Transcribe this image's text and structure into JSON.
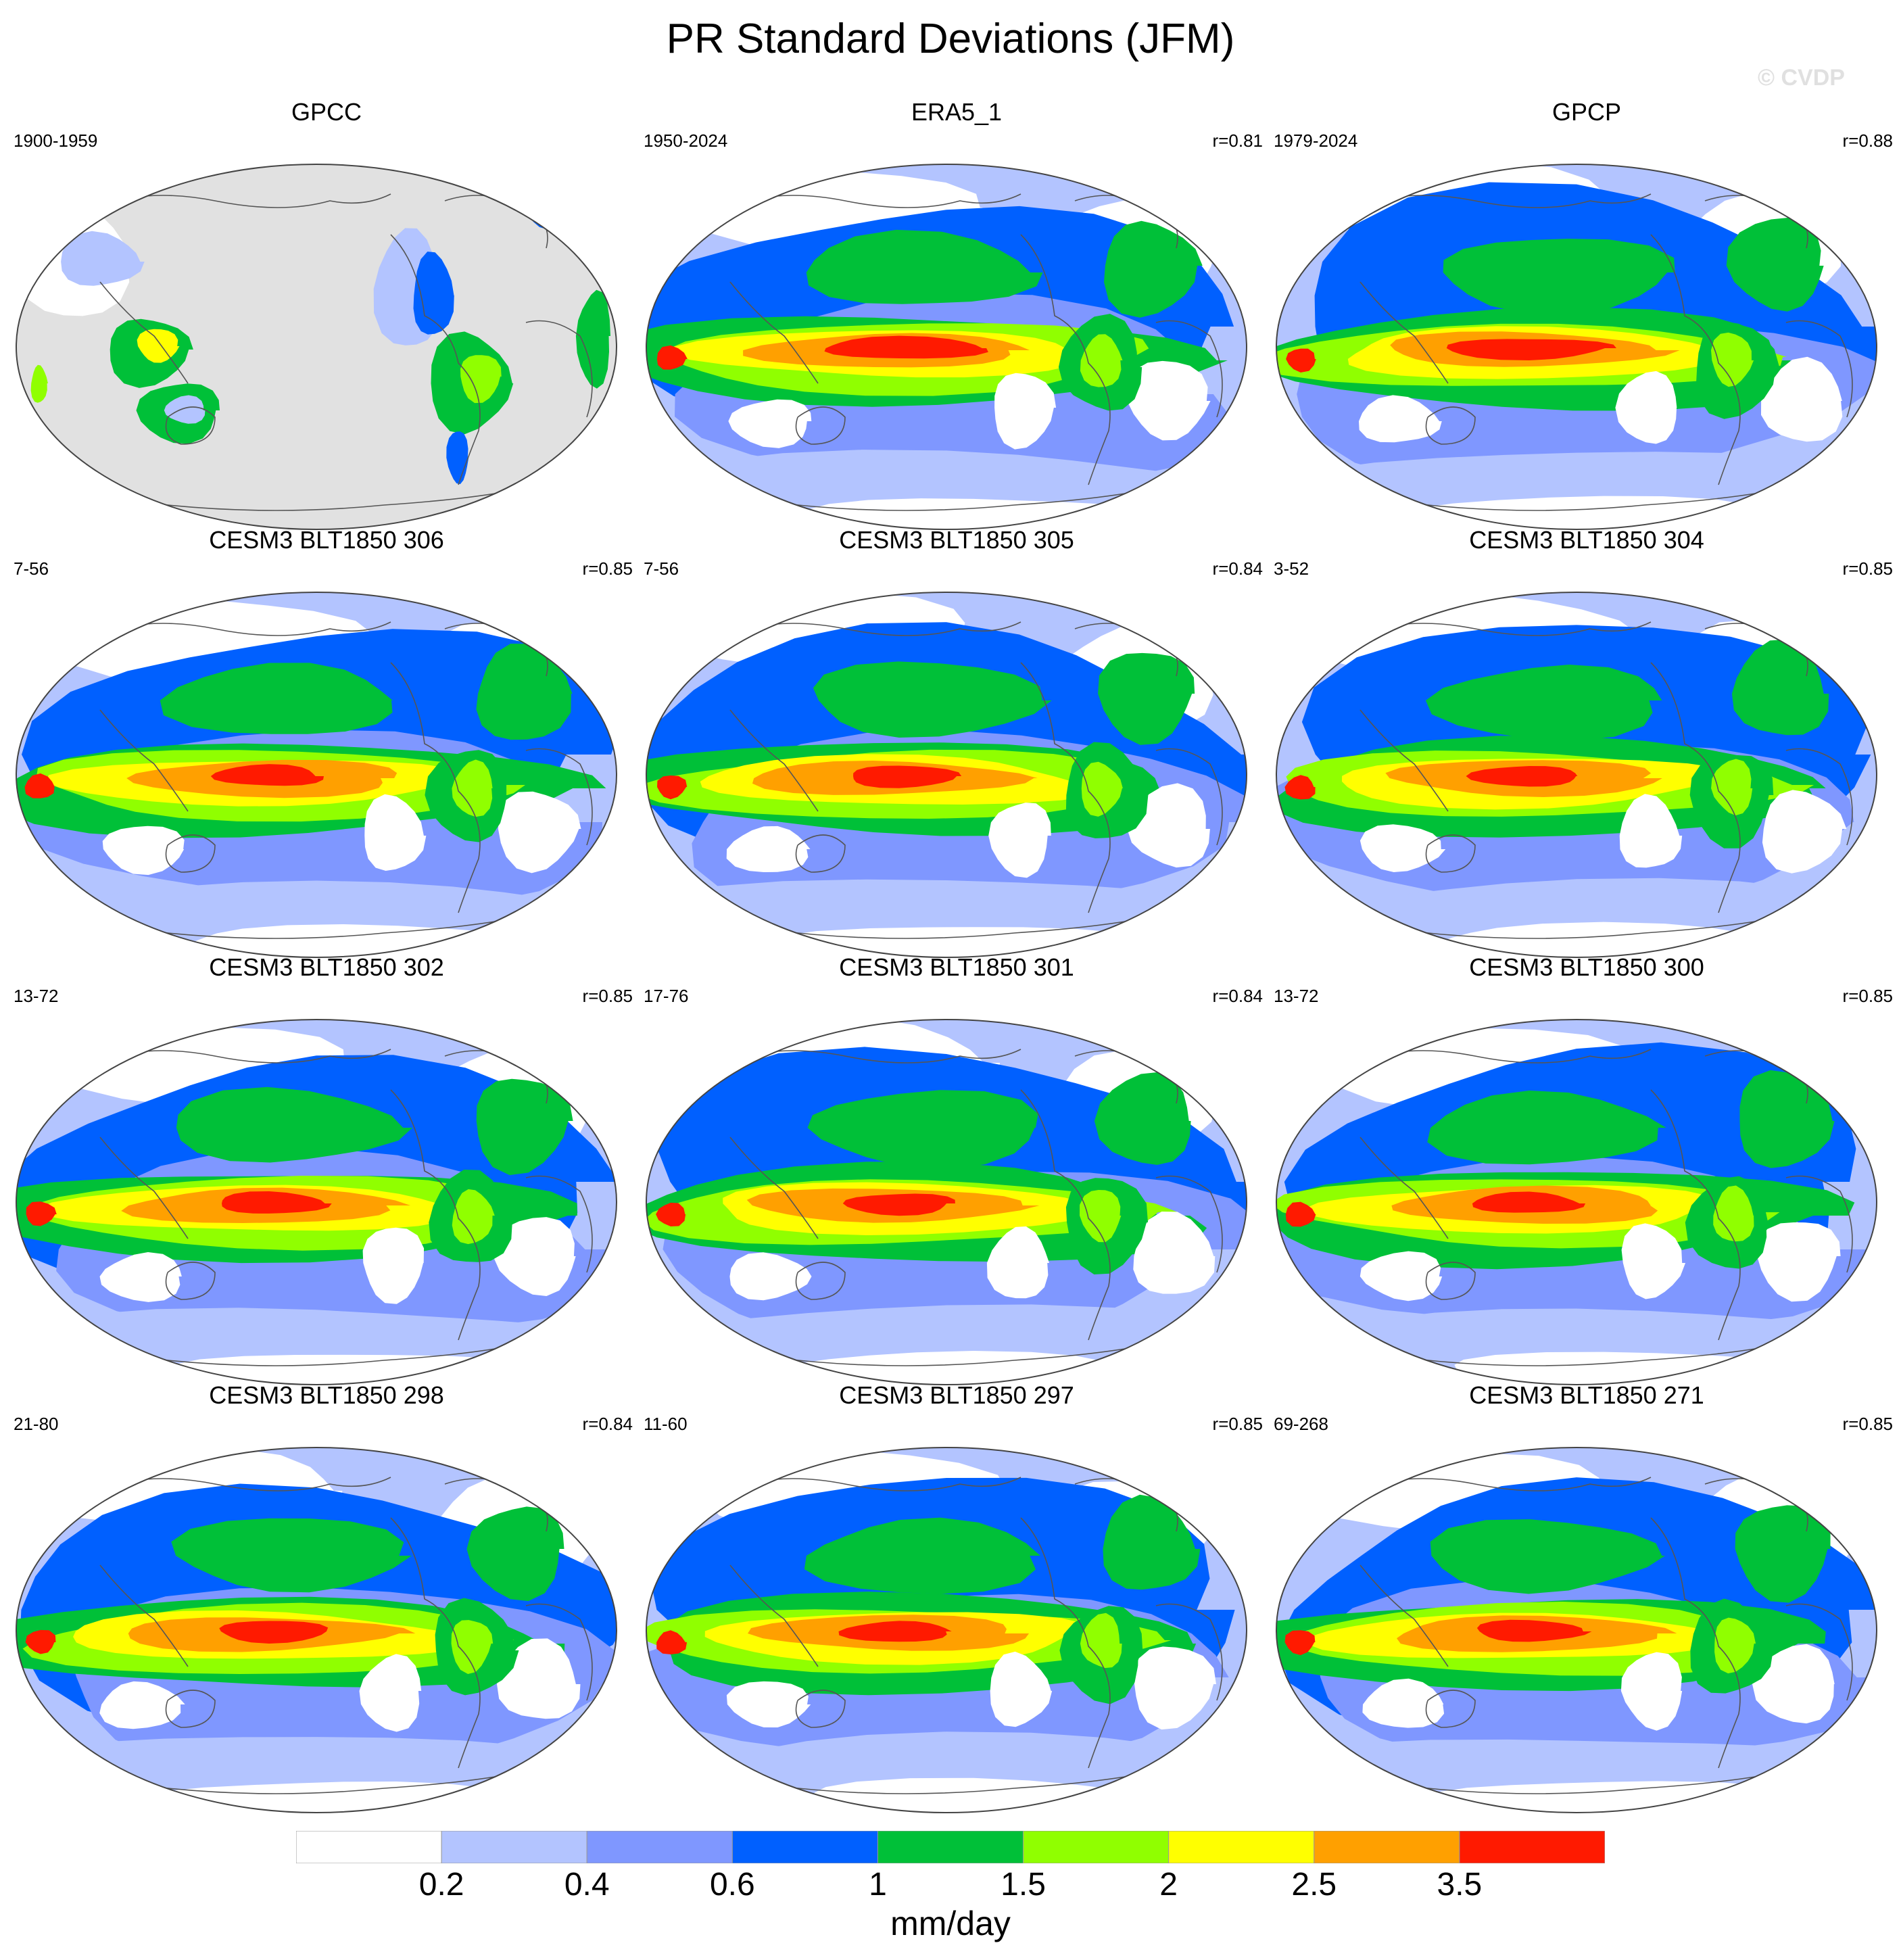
{
  "title": "PR Standard Deviations (JFM)",
  "watermark": "© CVDP",
  "colors": {
    "levels": [
      "#ffffff",
      "#b3c4ff",
      "#7f97ff",
      "#0060ff",
      "#00c038",
      "#90ff00",
      "#ffff00",
      "#ffa000",
      "#ff1a00"
    ],
    "ocean_gray": "#e1e1e1",
    "coast": "#555555"
  },
  "panels": [
    {
      "name": "GPCC",
      "years": "1900-1959",
      "corr": "",
      "style": "land"
    },
    {
      "name": "ERA5_1",
      "years": "1950-2024",
      "corr": "r=0.81",
      "style": "obs"
    },
    {
      "name": "GPCP",
      "years": "1979-2024",
      "corr": "r=0.88",
      "style": "obs"
    },
    {
      "name": "CESM3 BLT1850 306",
      "years": "7-56",
      "corr": "r=0.85",
      "style": "model"
    },
    {
      "name": "CESM3 BLT1850 305",
      "years": "7-56",
      "corr": "r=0.84",
      "style": "model"
    },
    {
      "name": "CESM3 BLT1850 304",
      "years": "3-52",
      "corr": "r=0.85",
      "style": "model"
    },
    {
      "name": "CESM3 BLT1850 302",
      "years": "13-72",
      "corr": "r=0.85",
      "style": "model"
    },
    {
      "name": "CESM3 BLT1850 301",
      "years": "17-76",
      "corr": "r=0.84",
      "style": "model"
    },
    {
      "name": "CESM3 BLT1850 300",
      "years": "13-72",
      "corr": "r=0.85",
      "style": "model"
    },
    {
      "name": "CESM3 BLT1850 298",
      "years": "21-80",
      "corr": "r=0.84",
      "style": "model"
    },
    {
      "name": "CESM3 BLT1850 297",
      "years": "11-60",
      "corr": "r=0.85",
      "style": "model"
    },
    {
      "name": "CESM3 BLT1850 271",
      "years": "69-268",
      "corr": "r=0.85",
      "style": "model"
    }
  ],
  "colorbar": {
    "labels": [
      "0.2",
      "0.4",
      "0.6",
      "1",
      "1.5",
      "2",
      "2.5",
      "3.5"
    ],
    "units": "mm/day"
  }
}
